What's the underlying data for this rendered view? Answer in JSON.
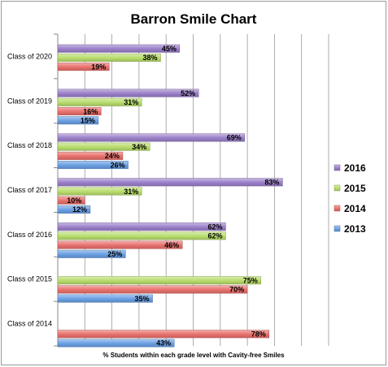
{
  "chart_data": {
    "type": "bar",
    "orientation": "horizontal",
    "title": "Barron Smile Chart",
    "xlabel": "% Students within each grade level with Cavity-free Smiles",
    "ylabel": "",
    "xlim": [
      0,
      100
    ],
    "grid": true,
    "legend_position": "right",
    "categories": [
      "Class of 2020",
      "Class of 2019",
      "Class of 2018",
      "Class of 2017",
      "Class of 2016",
      "Class of 2015",
      "Class of 2014"
    ],
    "series": [
      {
        "name": "2016",
        "color": "#9b7fc9",
        "values": [
          45,
          52,
          69,
          83,
          62,
          null,
          null
        ]
      },
      {
        "name": "2015",
        "color": "#b8dc6c",
        "values": [
          38,
          31,
          34,
          31,
          62,
          75,
          null
        ]
      },
      {
        "name": "2014",
        "color": "#e8706c",
        "values": [
          19,
          16,
          24,
          10,
          46,
          70,
          78
        ]
      },
      {
        "name": "2013",
        "color": "#6a9fe3",
        "values": [
          null,
          15,
          26,
          12,
          25,
          35,
          43
        ]
      }
    ],
    "value_suffix": "%"
  }
}
